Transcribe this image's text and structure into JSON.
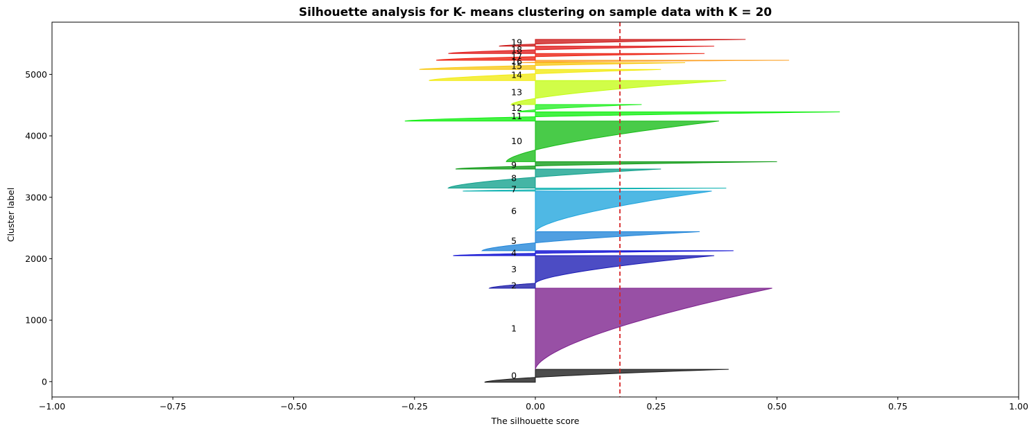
{
  "chart_data": {
    "type": "area",
    "title": "Silhouette analysis for K- means clustering on sample data with K = 20",
    "xlabel": "The silhouette score",
    "ylabel": "Cluster label",
    "xlim": [
      -1.0,
      1.0
    ],
    "ylim": [
      -250,
      5850
    ],
    "x_ticks": [
      -1.0,
      -0.75,
      -0.5,
      -0.25,
      0.0,
      0.25,
      0.5,
      0.75,
      1.0
    ],
    "x_tick_labels": [
      "−1.00",
      "−0.75",
      "−0.50",
      "−0.25",
      "0.00",
      "0.25",
      "0.50",
      "0.75",
      "1.00"
    ],
    "y_ticks": [
      0,
      1000,
      2000,
      3000,
      4000,
      5000
    ],
    "y_tick_labels": [
      "0",
      "1000",
      "2000",
      "3000",
      "4000",
      "5000"
    ],
    "grid": false,
    "average_silhouette_score": 0.175,
    "average_line_color": "#d62728",
    "clusters": [
      {
        "label": "0",
        "y_start": -10,
        "y_end": 200,
        "min": -0.105,
        "max": 0.4,
        "color": "#1a1a1a"
      },
      {
        "label": "1",
        "y_start": 200,
        "y_end": 1520,
        "min": 0.0,
        "max": 0.49,
        "color": "#7b1f8c"
      },
      {
        "label": "2",
        "y_start": 1520,
        "y_end": 1600,
        "min": -0.095,
        "max": 0.0,
        "color": "#1a1aa8"
      },
      {
        "label": "3",
        "y_start": 1600,
        "y_end": 2050,
        "min": 0.0,
        "max": 0.37,
        "color": "#1a1ab4"
      },
      {
        "label": "4",
        "y_start": 2050,
        "y_end": 2130,
        "min": -0.17,
        "max": 0.41,
        "color": "#0a0ad2"
      },
      {
        "label": "5",
        "y_start": 2130,
        "y_end": 2440,
        "min": -0.11,
        "max": 0.34,
        "color": "#1f84d8"
      },
      {
        "label": "6",
        "y_start": 2440,
        "y_end": 3100,
        "min": 0.0,
        "max": 0.365,
        "color": "#1ea4dc"
      },
      {
        "label": "7",
        "y_start": 3100,
        "y_end": 3150,
        "min": -0.15,
        "max": 0.395,
        "color": "#14b4b4"
      },
      {
        "label": "8",
        "y_start": 3150,
        "y_end": 3460,
        "min": -0.18,
        "max": 0.26,
        "color": "#10a08c"
      },
      {
        "label": "9",
        "y_start": 3460,
        "y_end": 3580,
        "min": -0.165,
        "max": 0.5,
        "color": "#0e9a14"
      },
      {
        "label": "10",
        "y_start": 3580,
        "y_end": 4240,
        "min": -0.06,
        "max": 0.38,
        "color": "#16bc16"
      },
      {
        "label": "11",
        "y_start": 4240,
        "y_end": 4390,
        "min": -0.27,
        "max": 0.63,
        "color": "#10ee10"
      },
      {
        "label": "12",
        "y_start": 4390,
        "y_end": 4510,
        "min": -0.035,
        "max": 0.22,
        "color": "#22f022"
      },
      {
        "label": "13",
        "y_start": 4510,
        "y_end": 4900,
        "min": -0.05,
        "max": 0.395,
        "color": "#c4fc14"
      },
      {
        "label": "14",
        "y_start": 4900,
        "y_end": 5080,
        "min": -0.22,
        "max": 0.26,
        "color": "#f2ea10"
      },
      {
        "label": "15",
        "y_start": 5080,
        "y_end": 5190,
        "min": -0.24,
        "max": 0.31,
        "color": "#f8c814"
      },
      {
        "label": "16",
        "y_start": 5190,
        "y_end": 5230,
        "min": -0.03,
        "max": 0.525,
        "color": "#fca024"
      },
      {
        "label": "17",
        "y_start": 5230,
        "y_end": 5340,
        "min": -0.205,
        "max": 0.35,
        "color": "#ec2010"
      },
      {
        "label": "18",
        "y_start": 5340,
        "y_end": 5460,
        "min": -0.18,
        "max": 0.37,
        "color": "#e01a1a"
      },
      {
        "label": "19",
        "y_start": 5460,
        "y_end": 5570,
        "min": -0.075,
        "max": 0.435,
        "color": "#cc1818"
      }
    ]
  }
}
